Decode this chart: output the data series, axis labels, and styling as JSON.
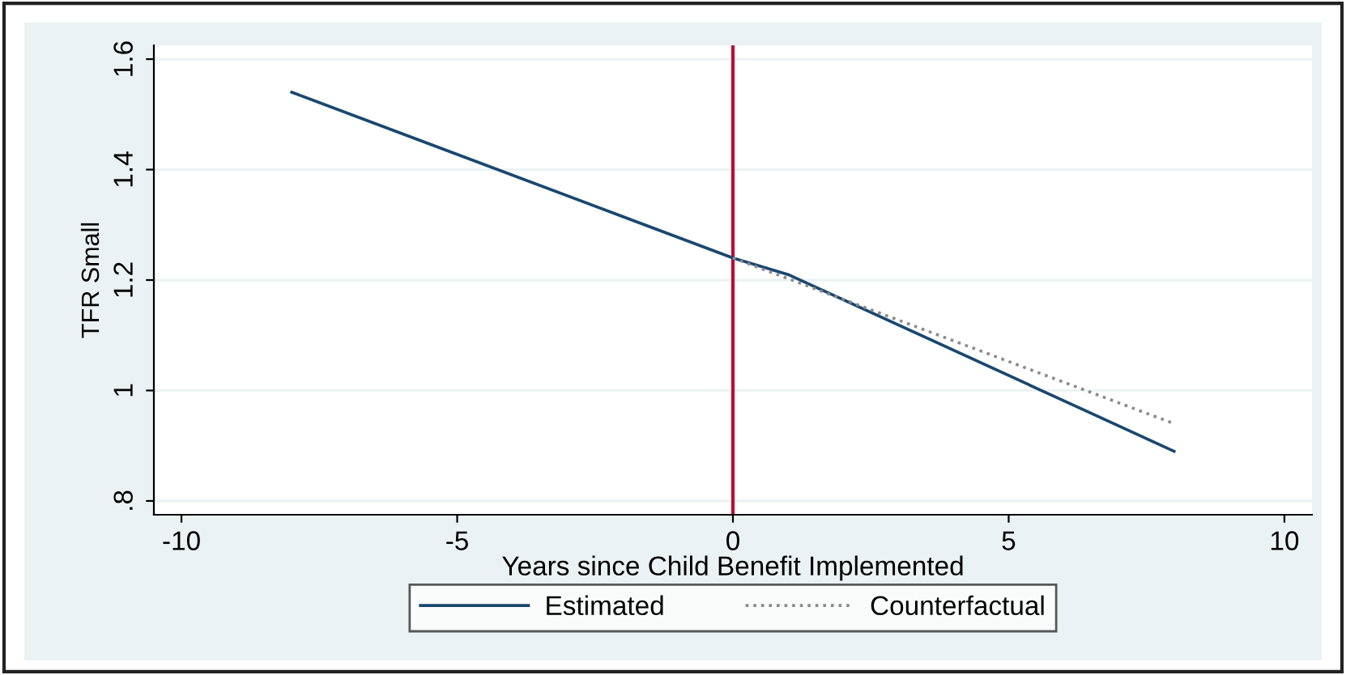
{
  "chart_data": {
    "type": "line",
    "xlabel": "Years since Child Benefit Implemented",
    "ylabel": "TFR Small",
    "series": [
      {
        "name": "Estimated",
        "color": "#1a476f",
        "x": [
          -8,
          0,
          1,
          8
        ],
        "values": [
          1.54,
          1.24,
          1.21,
          0.89
        ],
        "line_style": "solid"
      },
      {
        "name": "Counterfactual",
        "color": "#8a8a8a",
        "x": [
          0,
          8
        ],
        "values": [
          1.24,
          0.94
        ],
        "line_style": "dotted"
      }
    ],
    "xlim": [
      -10.5,
      10.5
    ],
    "ylim": [
      0.775,
      1.625
    ],
    "xticks": [
      -10,
      -5,
      0,
      5,
      10
    ],
    "yticks": [
      {
        "value": 0.8,
        "label": ".8"
      },
      1,
      1.2,
      1.4,
      1.6
    ],
    "ref_lines": [
      {
        "axis": "x",
        "value": 0,
        "color": "#c10534"
      }
    ],
    "grid": "y",
    "legend": "bottom",
    "marker": "none"
  }
}
